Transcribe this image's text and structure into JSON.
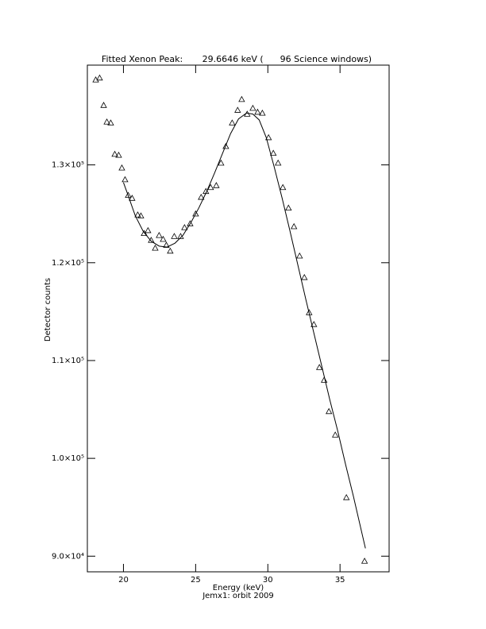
{
  "chart_data": {
    "type": "scatter",
    "title": "Fitted Xenon Peak:       29.6646 keV (      96 Science windows)",
    "xlabel": "Energy (keV)",
    "subtitle": "Jemx1: orbit 2009",
    "ylabel": "Detector counts",
    "xlim": [
      17.5,
      38.4
    ],
    "xticks": [
      20,
      25,
      30,
      35
    ],
    "ylim": [
      88400,
      140200
    ],
    "yticks": [
      {
        "value": 90000,
        "label": "9.0×10⁴"
      },
      {
        "value": 100000,
        "label": "1.0×10⁵"
      },
      {
        "value": 110000,
        "label": "1.1×10⁵"
      },
      {
        "value": 120000,
        "label": "1.2×10⁵"
      },
      {
        "value": 130000,
        "label": "1.3×10⁵"
      }
    ],
    "grid": false,
    "series": [
      {
        "type": "scatter",
        "marker": "triangle",
        "color": "#000000",
        "x": [
          18.08,
          18.35,
          18.63,
          18.85,
          19.12,
          19.4,
          19.67,
          19.89,
          20.11,
          20.33,
          20.6,
          20.99,
          21.21,
          21.43,
          21.7,
          21.92,
          22.2,
          22.47,
          22.75,
          22.97,
          23.24,
          23.52,
          23.96,
          24.23,
          24.62,
          25.0,
          25.38,
          25.71,
          26.04,
          26.43,
          26.76,
          27.09,
          27.53,
          27.91,
          28.19,
          28.57,
          28.96,
          29.29,
          29.62,
          30.05,
          30.38,
          30.71,
          31.04,
          31.43,
          31.81,
          32.2,
          32.53,
          32.86,
          33.19,
          33.57,
          33.9,
          34.23,
          34.67,
          35.44,
          36.7
        ],
        "values": [
          138700,
          138900,
          136100,
          134400,
          134300,
          131100,
          131000,
          129700,
          128500,
          126900,
          126600,
          124900,
          124800,
          123000,
          123300,
          122300,
          121500,
          122800,
          122400,
          121800,
          121200,
          122700,
          122700,
          123600,
          124000,
          125000,
          126700,
          127300,
          127700,
          127900,
          130200,
          131900,
          134300,
          135600,
          136700,
          135200,
          135800,
          135400,
          135300,
          132800,
          131200,
          130200,
          127700,
          125600,
          123700,
          120700,
          118500,
          114900,
          113700,
          109300,
          108000,
          104800,
          102400,
          96000,
          89500
        ]
      },
      {
        "type": "line",
        "color": "#000000",
        "x": [
          20.0,
          20.27,
          20.82,
          21.37,
          21.92,
          22.47,
          23.02,
          23.57,
          24.12,
          24.67,
          25.22,
          25.77,
          26.32,
          26.87,
          27.42,
          27.97,
          28.52,
          28.96,
          29.4,
          29.89,
          30.44,
          30.99,
          31.54,
          32.09,
          32.64,
          33.19,
          33.74,
          34.29,
          34.84,
          35.38,
          35.93,
          36.76
        ],
        "values": [
          128200,
          127100,
          124800,
          123200,
          122200,
          121700,
          121600,
          122000,
          122800,
          124100,
          125600,
          127300,
          129200,
          131200,
          133200,
          134700,
          135300,
          135200,
          134600,
          132800,
          129800,
          126600,
          123200,
          119700,
          116200,
          112800,
          109400,
          106000,
          102800,
          99400,
          96100,
          90800
        ]
      }
    ]
  }
}
